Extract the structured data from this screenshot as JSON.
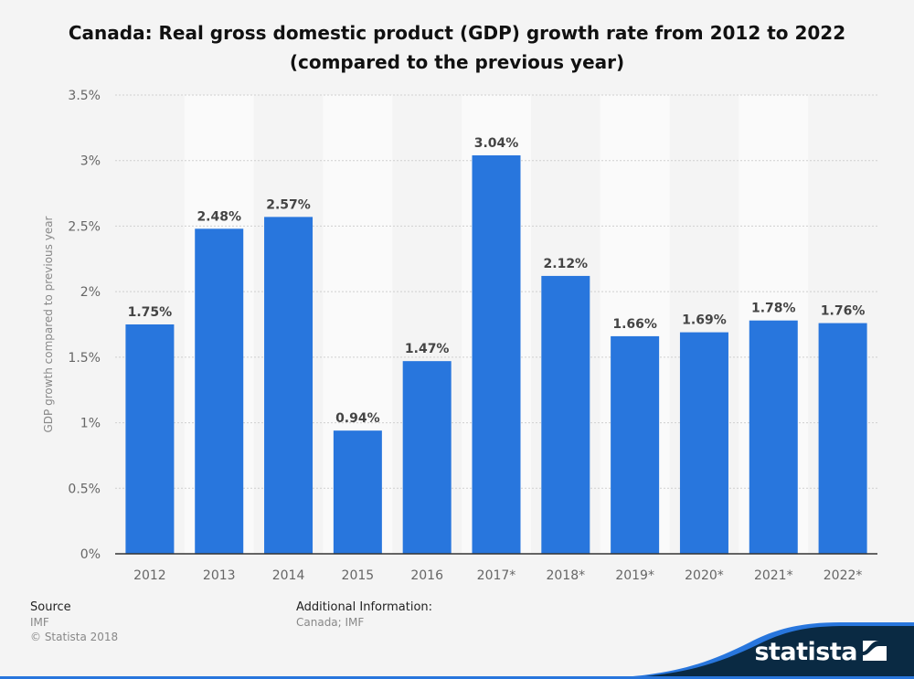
{
  "chart_data": {
    "type": "bar",
    "title": "Canada: Real gross domestic product (GDP) growth rate from 2012 to 2022",
    "subtitle": "(compared to the previous year)",
    "xlabel": "",
    "ylabel": "GDP growth compared to previous year",
    "categories": [
      "2012",
      "2013",
      "2014",
      "2015",
      "2016",
      "2017*",
      "2018*",
      "2019*",
      "2020*",
      "2021*",
      "2022*"
    ],
    "values": [
      1.75,
      2.48,
      2.57,
      0.94,
      1.47,
      3.04,
      2.12,
      1.66,
      1.69,
      1.78,
      1.76
    ],
    "data_labels": [
      "1.75%",
      "2.48%",
      "2.57%",
      "0.94%",
      "1.47%",
      "3.04%",
      "2.12%",
      "1.66%",
      "1.69%",
      "1.78%",
      "1.76%"
    ],
    "ylim": [
      0,
      3.5
    ],
    "yticks": [
      0,
      0.5,
      1,
      1.5,
      2,
      2.5,
      3,
      3.5
    ],
    "ytick_labels": [
      "0%",
      "0.5%",
      "1%",
      "1.5%",
      "2%",
      "2.5%",
      "3%",
      "3.5%"
    ],
    "grid": true,
    "legend": "none",
    "bar_color": "#2876dd"
  },
  "footer": {
    "source_label": "Source",
    "source_value": "IMF",
    "copyright": "© Statista 2018",
    "additional_label": "Additional Information:",
    "additional_value": "Canada; IMF"
  },
  "brand": {
    "name": "statista",
    "dark_color": "#0a2a43",
    "accent_color": "#2876dd"
  }
}
